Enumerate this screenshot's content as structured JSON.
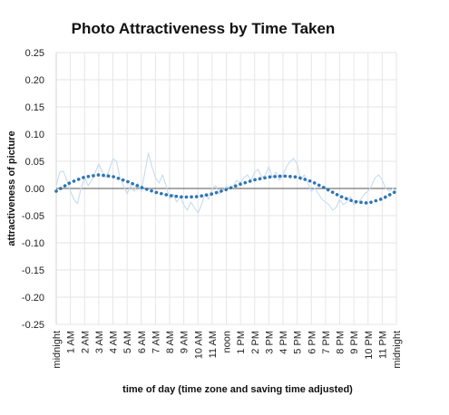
{
  "chart_data": {
    "type": "line",
    "title": "Photo Attractiveness by Time Taken",
    "xlabel": "time of day (time zone and saving time adjusted)",
    "ylabel": "attractiveness of picture",
    "ylim": [
      -0.25,
      0.25
    ],
    "y_ticks": [
      "0.25",
      "0.20",
      "0.15",
      "0.10",
      "0.05",
      "0.00",
      "-0.05",
      "-0.10",
      "-0.15",
      "-0.20",
      "-0.25"
    ],
    "y_tick_values": [
      0.25,
      0.2,
      0.15,
      0.1,
      0.05,
      0.0,
      -0.05,
      -0.1,
      -0.15,
      -0.2,
      -0.25
    ],
    "categories": [
      "midnight",
      "1 AM",
      "2 AM",
      "3 AM",
      "4 AM",
      "5 AM",
      "6 AM",
      "7 AM",
      "8 AM",
      "9 AM",
      "10 AM",
      "11 AM",
      "noon",
      "1 PM",
      "2 PM",
      "3 PM",
      "4 PM",
      "5 PM",
      "6 PM",
      "7 PM",
      "8 PM",
      "9 PM",
      "10 PM",
      "11 PM",
      "midnight"
    ],
    "grid": true,
    "legend": "none",
    "series": [
      {
        "style": "solid-thin",
        "color": "#c6dcef",
        "x": [
          0,
          0.25,
          0.5,
          0.75,
          1,
          1.25,
          1.5,
          1.75,
          2,
          2.25,
          2.5,
          2.75,
          3,
          3.25,
          3.5,
          3.75,
          4,
          4.25,
          4.5,
          4.75,
          5,
          5.25,
          5.5,
          5.75,
          6,
          6.25,
          6.5,
          6.75,
          7,
          7.25,
          7.5,
          7.75,
          8,
          8.25,
          8.5,
          8.75,
          9,
          9.25,
          9.5,
          9.75,
          10,
          10.25,
          10.5,
          10.75,
          11,
          11.25,
          11.5,
          11.75,
          12,
          12.25,
          12.5,
          12.75,
          13,
          13.25,
          13.5,
          13.75,
          14,
          14.25,
          14.5,
          14.75,
          15,
          15.25,
          15.5,
          15.75,
          16,
          16.25,
          16.5,
          16.75,
          17,
          17.25,
          17.5,
          17.75,
          18,
          18.25,
          18.5,
          18.75,
          19,
          19.25,
          19.5,
          19.75,
          20,
          20.25,
          20.5,
          20.75,
          21,
          21.25,
          21.5,
          21.75,
          22,
          22.25,
          22.5,
          22.75,
          23,
          23.25,
          23.5,
          23.75,
          24
        ],
        "values": [
          0.005,
          0.03,
          0.032,
          0.015,
          -0.005,
          -0.02,
          -0.028,
          0.0,
          0.02,
          0.005,
          0.015,
          0.03,
          0.045,
          0.03,
          0.02,
          0.035,
          0.055,
          0.05,
          0.02,
          0.005,
          -0.01,
          0.005,
          -0.005,
          0.01,
          -0.005,
          0.03,
          0.065,
          0.04,
          0.02,
          0.01,
          0.025,
          0.005,
          -0.02,
          -0.01,
          -0.025,
          -0.015,
          -0.03,
          -0.04,
          -0.025,
          -0.035,
          -0.045,
          -0.03,
          -0.01,
          -0.02,
          0.0,
          0.005,
          -0.01,
          -0.005,
          0.005,
          0.0,
          0.005,
          0.015,
          0.01,
          0.02,
          0.025,
          0.015,
          0.03,
          0.035,
          0.02,
          0.025,
          0.04,
          0.02,
          0.03,
          0.015,
          0.025,
          0.04,
          0.05,
          0.055,
          0.045,
          0.015,
          0.025,
          0.01,
          -0.005,
          0.0,
          -0.01,
          -0.02,
          -0.025,
          -0.03,
          -0.04,
          -0.035,
          -0.02,
          -0.03,
          -0.025,
          -0.015,
          -0.03,
          -0.025,
          -0.02,
          -0.01,
          -0.005,
          0.005,
          0.02,
          0.025,
          0.015,
          0.0,
          -0.005,
          0.0,
          -0.005
        ]
      },
      {
        "style": "dotted-thick",
        "color": "#2e75b6",
        "x": [
          0,
          1,
          2,
          3,
          4,
          5,
          6,
          7,
          8,
          9,
          10,
          11,
          12,
          13,
          14,
          15,
          16,
          17,
          18,
          19,
          20,
          21,
          22,
          23,
          24
        ],
        "values": [
          -0.005,
          0.011,
          0.021,
          0.025,
          0.022,
          0.013,
          0.002,
          -0.007,
          -0.013,
          -0.016,
          -0.015,
          -0.01,
          -0.002,
          0.008,
          0.016,
          0.021,
          0.023,
          0.021,
          0.013,
          0.0,
          -0.014,
          -0.024,
          -0.027,
          -0.019,
          -0.005
        ]
      }
    ]
  }
}
